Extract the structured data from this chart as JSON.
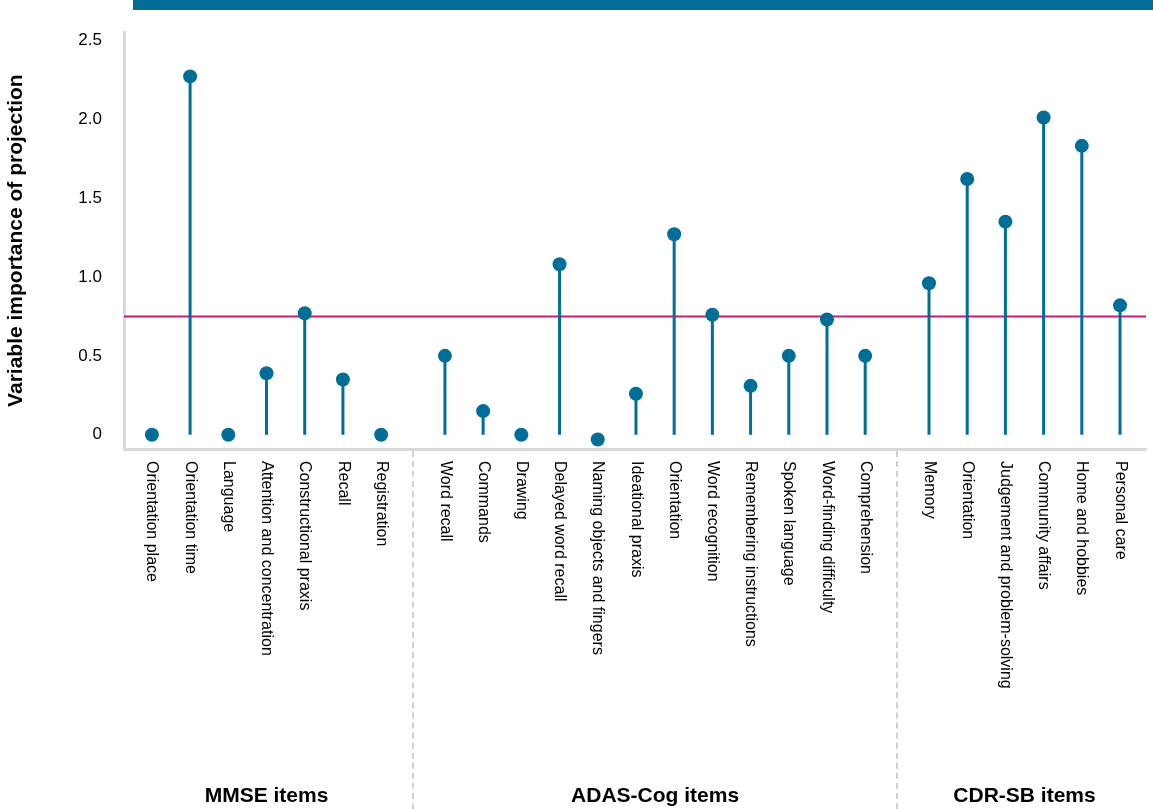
{
  "chart_data": {
    "type": "lollipop",
    "ylabel": "Variable importance of projection",
    "categories": [
      "Orientation place",
      "Orientation time",
      "Language",
      "Attention and concentration",
      "Constructional praxis",
      "Recall",
      "Registration",
      "Word recall",
      "Commands",
      "Drawing",
      "Delayed word recall",
      "Naming objects and fingers",
      "Ideational praxis",
      "Orientation",
      "Word recognition",
      "Remembering instructions",
      "Spoken language",
      "Word-finding difficulty",
      "Comprehension",
      "Memory",
      "Orientation",
      "Judgement and problem-solving",
      "Community affairs",
      "Home and hobbies",
      "Personal care"
    ],
    "values": [
      0.0,
      2.27,
      0.0,
      0.39,
      0.77,
      0.35,
      0.0,
      0.5,
      0.15,
      0.0,
      1.08,
      -0.03,
      0.26,
      1.27,
      0.76,
      0.31,
      0.5,
      0.73,
      0.5,
      0.96,
      1.62,
      1.35,
      2.01,
      1.83,
      0.82
    ],
    "color": "#006e96",
    "ylim": [
      -0.09,
      2.55
    ],
    "yticks": [
      {
        "value": 0,
        "label": "0"
      },
      {
        "value": 0.5,
        "label": "0.5"
      },
      {
        "value": 1,
        "label": "1.0"
      },
      {
        "value": 1.5,
        "label": "1.5"
      },
      {
        "value": 2,
        "label": "2.0"
      },
      {
        "value": 2.5,
        "label": "2.5"
      }
    ],
    "ref_lines": [
      {
        "axis": "y",
        "value": 0.75,
        "label": null,
        "color": "#c8187f"
      }
    ],
    "annotations": [
      "MMSE items",
      "ADAS-Cog items",
      "CDR-SB items"
    ],
    "legend": false,
    "marker": "circle"
  }
}
